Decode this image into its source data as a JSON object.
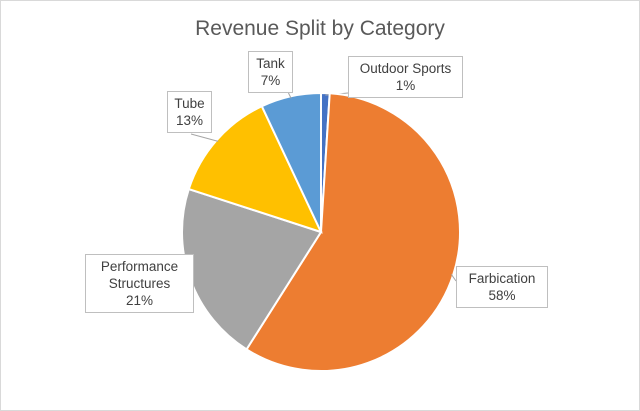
{
  "chart_data": {
    "type": "pie",
    "title": "Revenue Split by Category",
    "slices": [
      {
        "label": "Outdoor Sports",
        "value": 1,
        "display": "1%",
        "color": "#4472C4"
      },
      {
        "label": "Farbication",
        "value": 58,
        "display": "58%",
        "color": "#ED7D31"
      },
      {
        "label": "Performance Structures",
        "value": 21,
        "display": "21%",
        "color": "#A5A5A5"
      },
      {
        "label": "Tube",
        "value": 13,
        "display": "13%",
        "color": "#FFC000"
      },
      {
        "label": "Tank",
        "value": 7,
        "display": "7%",
        "color": "#5B9BD5"
      }
    ],
    "start_angle_deg": 0,
    "direction": "clockwise",
    "legend": "none",
    "data_labels": "outside-callout"
  }
}
